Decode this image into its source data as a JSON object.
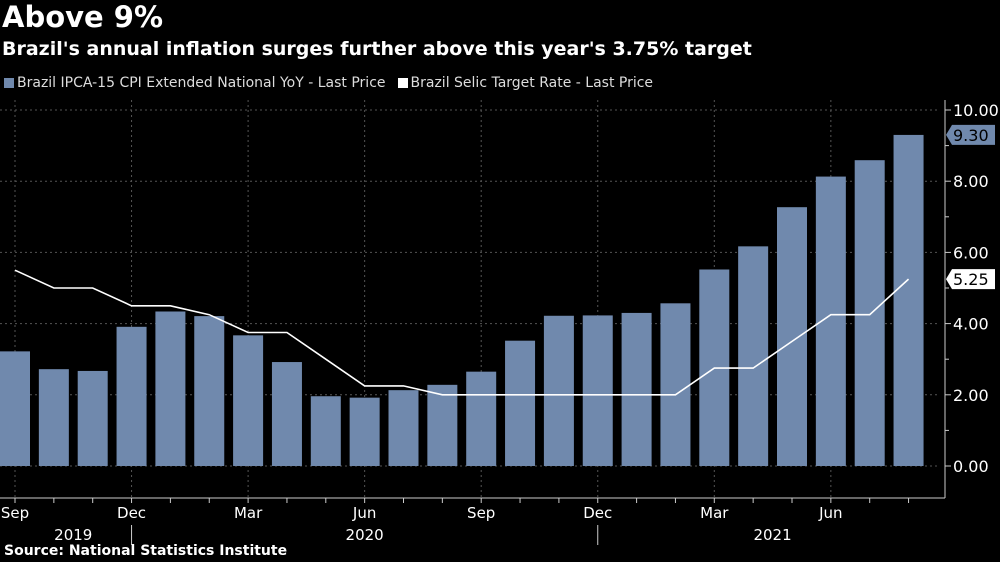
{
  "chart_data": {
    "type": "bar+line",
    "title": "Above 9%",
    "subtitle": "Brazil's annual inflation surges further above this year's 3.75% target",
    "source": "Source: National Statistics Institute",
    "categories": [
      "Sep 2019",
      "Oct 2019",
      "Nov 2019",
      "Dec 2019",
      "Jan 2020",
      "Feb 2020",
      "Mar 2020",
      "Apr 2020",
      "May 2020",
      "Jun 2020",
      "Jul 2020",
      "Aug 2020",
      "Sep 2020",
      "Oct 2020",
      "Nov 2020",
      "Dec 2020",
      "Jan 2021",
      "Feb 2021",
      "Mar 2021",
      "Apr 2021",
      "May 2021",
      "Jun 2021",
      "Jul 2021",
      "Aug 2021"
    ],
    "series": [
      {
        "name": "Brazil IPCA-15 CPI Extended National YoY - Last Price",
        "type": "bar",
        "color": "#7089ad",
        "values": [
          3.22,
          2.72,
          2.67,
          3.91,
          4.34,
          4.21,
          3.67,
          2.92,
          1.96,
          1.92,
          2.13,
          2.28,
          2.65,
          3.52,
          4.22,
          4.23,
          4.3,
          4.57,
          5.52,
          6.17,
          7.27,
          8.13,
          8.59,
          9.3
        ],
        "last_label": "9.30"
      },
      {
        "name": "Brazil Selic Target Rate - Last Price",
        "type": "line",
        "color": "#ffffff",
        "values": [
          5.5,
          5.0,
          5.0,
          4.5,
          4.5,
          4.25,
          3.75,
          3.75,
          3.0,
          2.25,
          2.25,
          2.0,
          2.0,
          2.0,
          2.0,
          2.0,
          2.0,
          2.0,
          2.75,
          2.75,
          3.5,
          4.25,
          4.25,
          5.25
        ],
        "last_label": "5.25"
      }
    ],
    "x_tick_labels": [
      {
        "label": "Sep",
        "index": 0
      },
      {
        "label": "Dec",
        "index": 3
      },
      {
        "label": "Mar",
        "index": 6
      },
      {
        "label": "Jun",
        "index": 9
      },
      {
        "label": "Sep",
        "index": 12
      },
      {
        "label": "Dec",
        "index": 15
      },
      {
        "label": "Mar",
        "index": 18
      },
      {
        "label": "Jun",
        "index": 21
      }
    ],
    "year_labels": [
      {
        "label": "2019",
        "index": 1.5
      },
      {
        "label": "2020",
        "index": 9
      },
      {
        "label": "2021",
        "index": 19.5
      }
    ],
    "y_ticks": [
      "0.00",
      "2.00",
      "4.00",
      "6.00",
      "8.00",
      "10.00"
    ],
    "ylim": [
      0,
      10
    ],
    "y_axis_side": "right",
    "grid": true,
    "legend_placement": "top-left"
  }
}
